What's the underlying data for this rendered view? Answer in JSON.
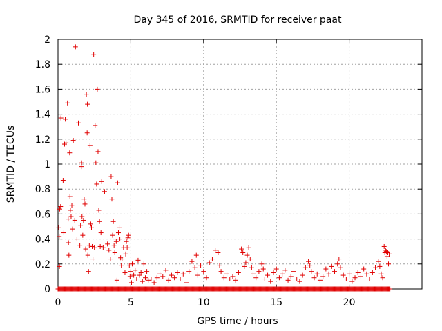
{
  "chart_data": {
    "type": "scatter",
    "title": "Day 345 of 2016, SRMTID for receiver paat",
    "xlabel": "GPS time / hours",
    "ylabel": "SRMTID / TECUs",
    "xlim": [
      0,
      25
    ],
    "ylim": [
      0,
      2
    ],
    "x_ticks": [
      0,
      5,
      10,
      15,
      20
    ],
    "y_ticks": [
      0,
      0.2,
      0.4,
      0.6,
      0.8,
      1,
      1.2,
      1.4,
      1.6,
      1.8,
      2
    ],
    "x_tick_labels": [
      "0",
      "5",
      "10",
      "15",
      "20"
    ],
    "y_tick_labels": [
      "0",
      "0.2",
      "0.4",
      "0.6",
      "0.8",
      "1",
      "1.2",
      "1.4",
      "1.6",
      "1.8",
      "2"
    ],
    "grid": true,
    "marker": "+",
    "marker_color": "#e00000",
    "zero_band": {
      "x_start": 0.0,
      "x_end": 22.8,
      "y": 0
    },
    "points": [
      [
        0.05,
        0.49
      ],
      [
        0.08,
        0.42
      ],
      [
        0.1,
        0.18
      ],
      [
        0.12,
        0.64
      ],
      [
        0.18,
        0.66
      ],
      [
        0.2,
        1.37
      ],
      [
        0.35,
        0.87
      ],
      [
        0.4,
        0.45
      ],
      [
        0.45,
        1.16
      ],
      [
        0.5,
        1.36
      ],
      [
        0.55,
        1.17
      ],
      [
        0.65,
        1.49
      ],
      [
        0.7,
        0.56
      ],
      [
        0.72,
        0.37
      ],
      [
        0.75,
        0.27
      ],
      [
        0.8,
        1.09
      ],
      [
        0.82,
        0.74
      ],
      [
        0.85,
        0.63
      ],
      [
        0.9,
        0.58
      ],
      [
        0.95,
        0.67
      ],
      [
        1.0,
        0.48
      ],
      [
        1.05,
        1.19
      ],
      [
        1.15,
        0.55
      ],
      [
        1.2,
        1.94
      ],
      [
        1.3,
        0.4
      ],
      [
        1.4,
        1.33
      ],
      [
        1.5,
        0.35
      ],
      [
        1.55,
        0.51
      ],
      [
        1.6,
        0.98
      ],
      [
        1.62,
        1.01
      ],
      [
        1.65,
        0.58
      ],
      [
        1.7,
        0.43
      ],
      [
        1.75,
        0.55
      ],
      [
        1.8,
        0.72
      ],
      [
        1.85,
        0.68
      ],
      [
        1.9,
        0.32
      ],
      [
        1.95,
        1.56
      ],
      [
        2.0,
        1.25
      ],
      [
        2.02,
        1.48
      ],
      [
        2.05,
        0.27
      ],
      [
        2.1,
        0.14
      ],
      [
        2.15,
        0.35
      ],
      [
        2.2,
        1.15
      ],
      [
        2.25,
        0.52
      ],
      [
        2.3,
        0.49
      ],
      [
        2.35,
        0.34
      ],
      [
        2.4,
        0.24
      ],
      [
        2.45,
        1.88
      ],
      [
        2.5,
        0.33
      ],
      [
        2.55,
        1.31
      ],
      [
        2.6,
        1.01
      ],
      [
        2.65,
        0.84
      ],
      [
        2.7,
        1.6
      ],
      [
        2.75,
        1.1
      ],
      [
        2.8,
        0.63
      ],
      [
        2.85,
        0.54
      ],
      [
        2.9,
        0.34
      ],
      [
        2.95,
        0.45
      ],
      [
        3.0,
        0.86
      ],
      [
        3.1,
        0.33
      ],
      [
        3.2,
        0.78
      ],
      [
        3.4,
        0.36
      ],
      [
        3.5,
        0.31
      ],
      [
        3.6,
        0.24
      ],
      [
        3.65,
        0.9
      ],
      [
        3.7,
        0.72
      ],
      [
        3.75,
        0.43
      ],
      [
        3.8,
        0.54
      ],
      [
        3.85,
        0.35
      ],
      [
        3.9,
        0.29
      ],
      [
        4.0,
        0.38
      ],
      [
        4.05,
        0.07
      ],
      [
        4.1,
        0.85
      ],
      [
        4.15,
        0.45
      ],
      [
        4.2,
        0.49
      ],
      [
        4.25,
        0.4
      ],
      [
        4.3,
        0.25
      ],
      [
        4.35,
        0.19
      ],
      [
        4.4,
        0.24
      ],
      [
        4.5,
        0.33
      ],
      [
        4.6,
        0.13
      ],
      [
        4.65,
        0.28
      ],
      [
        4.7,
        0.38
      ],
      [
        4.75,
        0.33
      ],
      [
        4.8,
        0.41
      ],
      [
        4.85,
        0.43
      ],
      [
        4.9,
        0.19
      ],
      [
        4.95,
        0.1
      ],
      [
        5.0,
        0.14
      ],
      [
        5.05,
        0.05
      ],
      [
        5.1,
        0.2
      ],
      [
        5.2,
        0.11
      ],
      [
        5.3,
        0.15
      ],
      [
        5.4,
        0.08
      ],
      [
        5.5,
        0.23
      ],
      [
        5.6,
        0.11
      ],
      [
        5.7,
        0.13
      ],
      [
        5.8,
        0.06
      ],
      [
        5.9,
        0.2
      ],
      [
        6.0,
        0.09
      ],
      [
        6.1,
        0.14
      ],
      [
        6.2,
        0.07
      ],
      [
        6.4,
        0.08
      ],
      [
        6.6,
        0.05
      ],
      [
        6.8,
        0.09
      ],
      [
        7.0,
        0.12
      ],
      [
        7.2,
        0.1
      ],
      [
        7.4,
        0.15
      ],
      [
        7.6,
        0.07
      ],
      [
        7.8,
        0.11
      ],
      [
        8.0,
        0.09
      ],
      [
        8.2,
        0.13
      ],
      [
        8.4,
        0.08
      ],
      [
        8.6,
        0.12
      ],
      [
        8.8,
        0.05
      ],
      [
        9.0,
        0.14
      ],
      [
        9.2,
        0.22
      ],
      [
        9.4,
        0.17
      ],
      [
        9.5,
        0.27
      ],
      [
        9.6,
        0.11
      ],
      [
        9.8,
        0.19
      ],
      [
        10.0,
        0.14
      ],
      [
        10.2,
        0.09
      ],
      [
        10.4,
        0.21
      ],
      [
        10.6,
        0.24
      ],
      [
        10.8,
        0.31
      ],
      [
        11.0,
        0.29
      ],
      [
        11.1,
        0.19
      ],
      [
        11.2,
        0.14
      ],
      [
        11.4,
        0.09
      ],
      [
        11.6,
        0.12
      ],
      [
        11.8,
        0.08
      ],
      [
        12.0,
        0.1
      ],
      [
        12.2,
        0.07
      ],
      [
        12.4,
        0.13
      ],
      [
        12.6,
        0.32
      ],
      [
        12.7,
        0.29
      ],
      [
        12.8,
        0.18
      ],
      [
        12.9,
        0.21
      ],
      [
        13.0,
        0.27
      ],
      [
        13.1,
        0.33
      ],
      [
        13.2,
        0.24
      ],
      [
        13.3,
        0.17
      ],
      [
        13.4,
        0.12
      ],
      [
        13.6,
        0.09
      ],
      [
        13.8,
        0.14
      ],
      [
        14.0,
        0.2
      ],
      [
        14.1,
        0.16
      ],
      [
        14.2,
        0.08
      ],
      [
        14.4,
        0.11
      ],
      [
        14.6,
        0.06
      ],
      [
        14.8,
        0.13
      ],
      [
        15.0,
        0.16
      ],
      [
        15.2,
        0.09
      ],
      [
        15.4,
        0.12
      ],
      [
        15.6,
        0.15
      ],
      [
        15.8,
        0.07
      ],
      [
        16.0,
        0.1
      ],
      [
        16.2,
        0.14
      ],
      [
        16.4,
        0.08
      ],
      [
        16.6,
        0.06
      ],
      [
        16.8,
        0.11
      ],
      [
        17.0,
        0.17
      ],
      [
        17.2,
        0.22
      ],
      [
        17.3,
        0.19
      ],
      [
        17.4,
        0.14
      ],
      [
        17.6,
        0.09
      ],
      [
        17.8,
        0.12
      ],
      [
        18.0,
        0.07
      ],
      [
        18.2,
        0.1
      ],
      [
        18.4,
        0.16
      ],
      [
        18.6,
        0.12
      ],
      [
        18.8,
        0.18
      ],
      [
        19.0,
        0.14
      ],
      [
        19.2,
        0.2
      ],
      [
        19.3,
        0.24
      ],
      [
        19.4,
        0.17
      ],
      [
        19.6,
        0.11
      ],
      [
        19.8,
        0.08
      ],
      [
        20.0,
        0.12
      ],
      [
        20.2,
        0.06
      ],
      [
        20.4,
        0.09
      ],
      [
        20.6,
        0.13
      ],
      [
        20.8,
        0.1
      ],
      [
        21.0,
        0.16
      ],
      [
        21.2,
        0.12
      ],
      [
        21.4,
        0.08
      ],
      [
        21.6,
        0.13
      ],
      [
        21.8,
        0.17
      ],
      [
        22.0,
        0.22
      ],
      [
        22.1,
        0.18
      ],
      [
        22.2,
        0.12
      ],
      [
        22.3,
        0.09
      ],
      [
        22.4,
        0.34
      ],
      [
        22.45,
        0.29
      ],
      [
        22.5,
        0.31
      ],
      [
        22.55,
        0.3
      ],
      [
        22.6,
        0.26
      ],
      [
        22.65,
        0.29
      ],
      [
        22.7,
        0.2
      ],
      [
        22.75,
        0.28
      ]
    ]
  }
}
